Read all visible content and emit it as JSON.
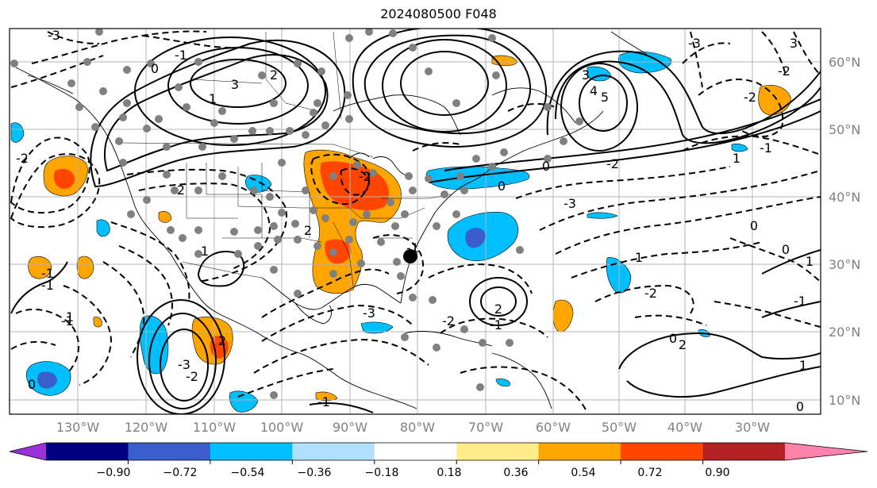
{
  "title": "2024080500 F048",
  "map": {
    "lon_labels": [
      "130°W",
      "120°W",
      "110°W",
      "100°W",
      "90°W",
      "80°W",
      "70°W",
      "60°W",
      "50°W",
      "40°W",
      "30°W"
    ],
    "lat_labels": [
      "60°N",
      "50°N",
      "40°N",
      "30°N",
      "20°N",
      "10°N"
    ],
    "contour_labels": [
      "3",
      "-3",
      "2",
      "0",
      "-2",
      "2",
      "-1",
      "3",
      "-2",
      "4",
      "5",
      "-3",
      "0",
      "-2",
      "-1",
      "0",
      "2",
      "-1",
      "1",
      "2",
      "-2",
      "2",
      "0",
      "0",
      "1",
      "-2",
      "-1",
      "-1",
      "0",
      "-3",
      "1",
      "-1",
      "-2",
      "-3",
      "3",
      "-2",
      "1",
      "-1",
      "-2",
      "2",
      "1",
      "-1",
      "0",
      "-1",
      "1",
      "0",
      "1",
      "-3"
    ],
    "colors": {
      "grid": "#b4b4b4",
      "coast": "#000000",
      "contour": "#000000",
      "station": "#808080",
      "marker": "#000000"
    }
  },
  "colorbar": {
    "ticks": [
      "−0.90",
      "−0.72",
      "−0.54",
      "−0.36",
      "−0.18",
      "0.18",
      "0.36",
      "0.54",
      "0.72",
      "0.90"
    ],
    "colors": [
      "#9b30d9",
      "#000080",
      "#3a5fcd",
      "#00bfff",
      "#b0e0ff",
      "#ffffff",
      "#ffec8b",
      "#ffa500",
      "#ff4500",
      "#b22222",
      "#ff82ab"
    ]
  }
}
